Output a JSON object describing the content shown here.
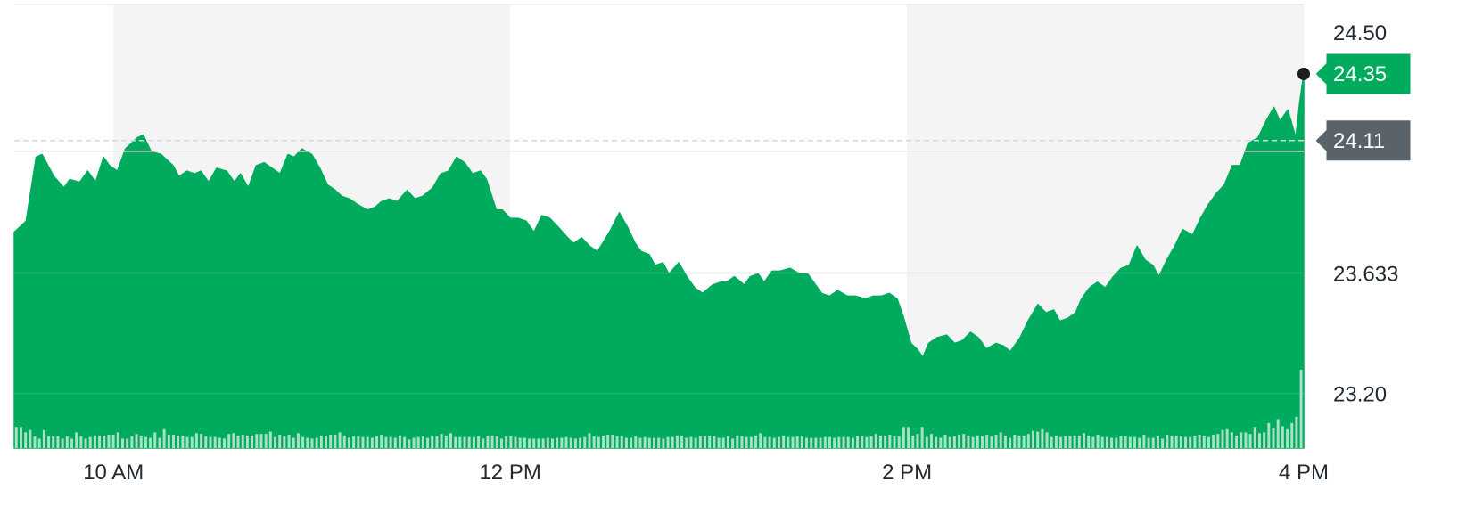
{
  "chart_data": {
    "type": "area",
    "title": "",
    "xlabel": "",
    "ylabel": "",
    "x_ticks": [
      {
        "label": "10 AM",
        "hour": 10
      },
      {
        "label": "12 PM",
        "hour": 12
      },
      {
        "label": "2 PM",
        "hour": 14
      },
      {
        "label": "4 PM",
        "hour": 16
      }
    ],
    "y_ticks": [
      {
        "label": "24.50",
        "value": 24.5
      },
      {
        "label": "23.633",
        "value": 23.633
      },
      {
        "label": "23.20",
        "value": 23.2
      }
    ],
    "xlim": [
      9.5,
      16.0
    ],
    "ylim": [
      23.003,
      24.6
    ],
    "shaded_bands": [
      [
        10.0,
        12.0
      ],
      [
        14.0,
        16.0
      ]
    ],
    "previous_close": {
      "label": "24.11",
      "value": 24.11
    },
    "current_price": {
      "label": "24.35",
      "value": 24.35
    },
    "colors": {
      "area": "#00ab5e",
      "current_badge": "#00ab5e",
      "previous_close_badge": "#5b636a",
      "band": "#f4f4f4",
      "volume": "#a8e0c3"
    },
    "price_series": [
      [
        9.5,
        23.78
      ],
      [
        9.56,
        23.82
      ],
      [
        9.61,
        24.05
      ],
      [
        9.64,
        24.06
      ],
      [
        9.7,
        23.98
      ],
      [
        9.75,
        23.94
      ],
      [
        9.78,
        23.97
      ],
      [
        9.83,
        23.96
      ],
      [
        9.87,
        24.0
      ],
      [
        9.91,
        23.96
      ],
      [
        9.95,
        24.05
      ],
      [
        9.98,
        24.02
      ],
      [
        10.02,
        24.0
      ],
      [
        10.06,
        24.08
      ],
      [
        10.12,
        24.12
      ],
      [
        10.15,
        24.13
      ],
      [
        10.19,
        24.07
      ],
      [
        10.24,
        24.06
      ],
      [
        10.3,
        24.02
      ],
      [
        10.33,
        23.98
      ],
      [
        10.37,
        24.0
      ],
      [
        10.41,
        23.99
      ],
      [
        10.44,
        24.0
      ],
      [
        10.48,
        23.96
      ],
      [
        10.52,
        24.01
      ],
      [
        10.57,
        24.0
      ],
      [
        10.61,
        23.96
      ],
      [
        10.64,
        23.99
      ],
      [
        10.68,
        23.94
      ],
      [
        10.72,
        24.02
      ],
      [
        10.76,
        24.03
      ],
      [
        10.8,
        24.01
      ],
      [
        10.84,
        23.99
      ],
      [
        10.88,
        24.06
      ],
      [
        10.91,
        24.05
      ],
      [
        10.95,
        24.08
      ],
      [
        11.0,
        24.06
      ],
      [
        11.04,
        24.01
      ],
      [
        11.08,
        23.95
      ],
      [
        11.12,
        23.93
      ],
      [
        11.15,
        23.91
      ],
      [
        11.19,
        23.9
      ],
      [
        11.23,
        23.88
      ],
      [
        11.28,
        23.86
      ],
      [
        11.32,
        23.87
      ],
      [
        11.35,
        23.89
      ],
      [
        11.39,
        23.9
      ],
      [
        11.43,
        23.89
      ],
      [
        11.48,
        23.93
      ],
      [
        11.52,
        23.9
      ],
      [
        11.56,
        23.91
      ],
      [
        11.61,
        23.94
      ],
      [
        11.65,
        23.99
      ],
      [
        11.69,
        24.0
      ],
      [
        11.73,
        24.05
      ],
      [
        11.77,
        24.03
      ],
      [
        11.81,
        23.99
      ],
      [
        11.85,
        24.0
      ],
      [
        11.88,
        23.97
      ],
      [
        11.93,
        23.86
      ],
      [
        11.96,
        23.86
      ],
      [
        12.0,
        23.83
      ],
      [
        12.04,
        23.83
      ],
      [
        12.08,
        23.82
      ],
      [
        12.12,
        23.78
      ],
      [
        12.16,
        23.84
      ],
      [
        12.2,
        23.83
      ],
      [
        12.24,
        23.8
      ],
      [
        12.29,
        23.76
      ],
      [
        12.32,
        23.74
      ],
      [
        12.36,
        23.76
      ],
      [
        12.4,
        23.73
      ],
      [
        12.44,
        23.71
      ],
      [
        12.5,
        23.78
      ],
      [
        12.55,
        23.85
      ],
      [
        12.59,
        23.8
      ],
      [
        12.63,
        23.74
      ],
      [
        12.66,
        23.71
      ],
      [
        12.7,
        23.7
      ],
      [
        12.73,
        23.66
      ],
      [
        12.77,
        23.67
      ],
      [
        12.8,
        23.63
      ],
      [
        12.85,
        23.67
      ],
      [
        12.89,
        23.62
      ],
      [
        12.93,
        23.58
      ],
      [
        12.97,
        23.56
      ],
      [
        13.02,
        23.59
      ],
      [
        13.06,
        23.6
      ],
      [
        13.09,
        23.6
      ],
      [
        13.13,
        23.62
      ],
      [
        13.18,
        23.59
      ],
      [
        13.21,
        23.62
      ],
      [
        13.25,
        23.63
      ],
      [
        13.28,
        23.6
      ],
      [
        13.32,
        23.64
      ],
      [
        13.36,
        23.64
      ],
      [
        13.41,
        23.65
      ],
      [
        13.46,
        23.63
      ],
      [
        13.5,
        23.63
      ],
      [
        13.53,
        23.6
      ],
      [
        13.57,
        23.56
      ],
      [
        13.61,
        23.55
      ],
      [
        13.65,
        23.57
      ],
      [
        13.7,
        23.55
      ],
      [
        13.74,
        23.55
      ],
      [
        13.79,
        23.54
      ],
      [
        13.83,
        23.55
      ],
      [
        13.87,
        23.55
      ],
      [
        13.91,
        23.56
      ],
      [
        13.95,
        23.54
      ],
      [
        13.98,
        23.48
      ],
      [
        14.02,
        23.38
      ],
      [
        14.05,
        23.36
      ],
      [
        14.08,
        23.33
      ],
      [
        14.11,
        23.38
      ],
      [
        14.15,
        23.4
      ],
      [
        14.2,
        23.41
      ],
      [
        14.24,
        23.38
      ],
      [
        14.28,
        23.39
      ],
      [
        14.32,
        23.42
      ],
      [
        14.36,
        23.4
      ],
      [
        14.4,
        23.36
      ],
      [
        14.45,
        23.38
      ],
      [
        14.49,
        23.37
      ],
      [
        14.52,
        23.35
      ],
      [
        14.57,
        23.4
      ],
      [
        14.61,
        23.46
      ],
      [
        14.66,
        23.52
      ],
      [
        14.7,
        23.49
      ],
      [
        14.74,
        23.5
      ],
      [
        14.77,
        23.46
      ],
      [
        14.81,
        23.47
      ],
      [
        14.85,
        23.49
      ],
      [
        14.88,
        23.54
      ],
      [
        14.92,
        23.58
      ],
      [
        14.96,
        23.6
      ],
      [
        15.0,
        23.58
      ],
      [
        15.04,
        23.62
      ],
      [
        15.08,
        23.65
      ],
      [
        15.12,
        23.66
      ],
      [
        15.16,
        23.73
      ],
      [
        15.2,
        23.68
      ],
      [
        15.24,
        23.66
      ],
      [
        15.27,
        23.62
      ],
      [
        15.31,
        23.68
      ],
      [
        15.35,
        23.73
      ],
      [
        15.39,
        23.79
      ],
      [
        15.44,
        23.77
      ],
      [
        15.48,
        23.83
      ],
      [
        15.52,
        23.88
      ],
      [
        15.56,
        23.92
      ],
      [
        15.6,
        23.95
      ],
      [
        15.64,
        24.02
      ],
      [
        15.68,
        24.02
      ],
      [
        15.72,
        24.1
      ],
      [
        15.77,
        24.12
      ],
      [
        15.81,
        24.18
      ],
      [
        15.85,
        24.23
      ],
      [
        15.88,
        24.18
      ],
      [
        15.92,
        24.22
      ],
      [
        15.96,
        24.12
      ],
      [
        15.98,
        24.25
      ],
      [
        16.0,
        24.35
      ]
    ],
    "volume_bars": [
      0.27,
      0.27,
      0.2,
      0.23,
      0.15,
      0.12,
      0.23,
      0.15,
      0.15,
      0.15,
      0.12,
      0.15,
      0.12,
      0.2,
      0.15,
      0.12,
      0.14,
      0.16,
      0.16,
      0.16,
      0.17,
      0.17,
      0.2,
      0.12,
      0.12,
      0.15,
      0.18,
      0.16,
      0.14,
      0.13,
      0.2,
      0.13,
      0.24,
      0.17,
      0.17,
      0.16,
      0.16,
      0.14,
      0.14,
      0.19,
      0.18,
      0.15,
      0.14,
      0.14,
      0.13,
      0.12,
      0.18,
      0.19,
      0.16,
      0.17,
      0.16,
      0.16,
      0.18,
      0.18,
      0.18,
      0.21,
      0.14,
      0.17,
      0.15,
      0.17,
      0.13,
      0.19,
      0.14,
      0.13,
      0.12,
      0.13,
      0.16,
      0.16,
      0.17,
      0.17,
      0.2,
      0.16,
      0.13,
      0.15,
      0.15,
      0.14,
      0.14,
      0.13,
      0.15,
      0.17,
      0.14,
      0.14,
      0.13,
      0.16,
      0.14,
      0.11,
      0.13,
      0.14,
      0.15,
      0.13,
      0.15,
      0.15,
      0.18,
      0.16,
      0.19,
      0.14,
      0.14,
      0.14,
      0.14,
      0.14,
      0.15,
      0.12,
      0.16,
      0.16,
      0.15,
      0.12,
      0.15,
      0.15,
      0.14,
      0.13,
      0.13,
      0.12,
      0.12,
      0.12,
      0.12,
      0.13,
      0.12,
      0.13,
      0.13,
      0.14,
      0.13,
      0.12,
      0.13,
      0.14,
      0.19,
      0.15,
      0.14,
      0.16,
      0.17,
      0.17,
      0.15,
      0.15,
      0.13,
      0.13,
      0.15,
      0.13,
      0.14,
      0.13,
      0.13,
      0.13,
      0.12,
      0.14,
      0.14,
      0.16,
      0.16,
      0.13,
      0.14,
      0.13,
      0.15,
      0.15,
      0.16,
      0.15,
      0.13,
      0.13,
      0.15,
      0.12,
      0.16,
      0.15,
      0.14,
      0.14,
      0.16,
      0.19,
      0.14,
      0.14,
      0.13,
      0.14,
      0.16,
      0.14,
      0.14,
      0.15,
      0.15,
      0.13,
      0.13,
      0.13,
      0.13,
      0.14,
      0.14,
      0.13,
      0.14,
      0.14,
      0.14,
      0.13,
      0.15,
      0.16,
      0.14,
      0.15,
      0.18,
      0.16,
      0.16,
      0.17,
      0.15,
      0.15,
      0.27,
      0.27,
      0.16,
      0.18,
      0.27,
      0.14,
      0.18,
      0.14,
      0.13,
      0.17,
      0.14,
      0.15,
      0.17,
      0.18,
      0.16,
      0.14,
      0.16,
      0.15,
      0.17,
      0.15,
      0.17,
      0.2,
      0.16,
      0.13,
      0.17,
      0.16,
      0.16,
      0.18,
      0.22,
      0.21,
      0.24,
      0.2,
      0.14,
      0.16,
      0.14,
      0.15,
      0.15,
      0.16,
      0.16,
      0.19,
      0.16,
      0.14,
      0.17,
      0.14,
      0.14,
      0.13,
      0.13,
      0.15,
      0.15,
      0.14,
      0.14,
      0.13,
      0.17,
      0.13,
      0.13,
      0.15,
      0.12,
      0.17,
      0.16,
      0.16,
      0.15,
      0.14,
      0.14,
      0.16,
      0.17,
      0.16,
      0.14,
      0.17,
      0.18,
      0.23,
      0.24,
      0.2,
      0.16,
      0.2,
      0.2,
      0.18,
      0.27,
      0.19,
      0.2,
      0.32,
      0.25,
      0.37,
      0.28,
      0.24,
      0.32,
      0.4,
      1.0
    ]
  }
}
